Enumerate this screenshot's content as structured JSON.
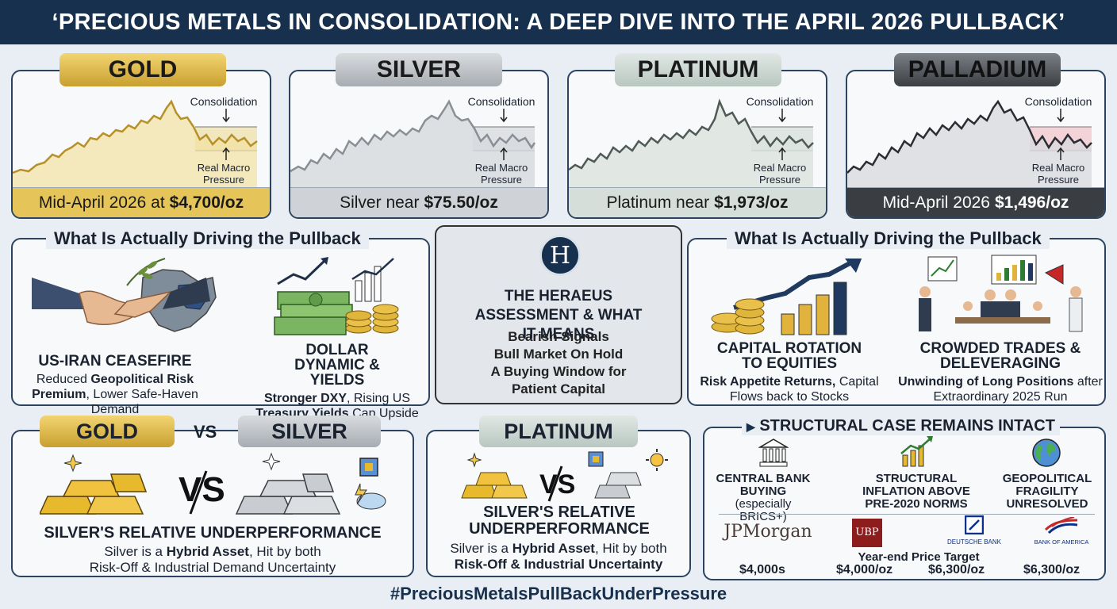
{
  "banner": {
    "title": "‘PRECIOUS METALS IN CONSOLIDATION: A DEEP DIVE INTO THE APRIL 2026 PULLBACK’"
  },
  "metal_cards": [
    {
      "name": "GOLD",
      "consolidation": "Consolidation",
      "pressure": "Real Macro\nPressure",
      "footer_prefix": "Mid-April 2026 at",
      "footer_price": "$4,700/oz",
      "color": "#d9b54a"
    },
    {
      "name": "SILVER",
      "consolidation": "Consolidation",
      "pressure": "Real Macro\nPressure",
      "footer_prefix": "Silver near",
      "footer_price": "$75.50/oz",
      "color": "#b8bcc2"
    },
    {
      "name": "PLATINUM",
      "consolidation": "Consolidation",
      "pressure": "Real Macro\nPressure",
      "footer_prefix": "Platinum near",
      "footer_price": "$1,973/oz",
      "color": "#c9d4cf"
    },
    {
      "name": "PALLADIUM",
      "consolidation": "Consolidation",
      "pressure": "Real Macro\nPressure",
      "footer_prefix": "Mid-April 2026",
      "footer_price": "$1,496/oz",
      "color": "#3b3f44"
    }
  ],
  "drivers_left": {
    "title": "What Is Actually Driving the Pullback",
    "items": [
      {
        "heading": "US-IRAN CEASEFIRE",
        "body_parts": [
          "Reduced ",
          "Geopolitical Risk Premium",
          ", Lower Safe-Haven Demand"
        ]
      },
      {
        "heading": "DOLLAR DYNAMIC & YIELDS",
        "body_parts": [
          "Stronger DXY",
          ", Rising US ",
          "Treasury Yields",
          " Cap Upside"
        ]
      }
    ]
  },
  "assessment": {
    "title": "THE HERAEUS ASSESSMENT & WHAT IT MEANS",
    "lines": [
      "Bearish Signals",
      "Bull Market On Hold",
      "A Buying Window for",
      "Patient Capital"
    ]
  },
  "drivers_right": {
    "title": "What Is Actually Driving the Pullback",
    "items": [
      {
        "heading": "CAPITAL ROTATION TO EQUITIES",
        "body_parts": [
          "Risk Appetite Returns,",
          " Capital Flows back to Stocks"
        ]
      },
      {
        "heading": "CROWDED TRADES & DELEVERAGING",
        "body_parts": [
          "Unwinding of Long Positions",
          " after Extraordinary 2025 Run"
        ]
      }
    ]
  },
  "gold_vs_silver": {
    "tag_left": "GOLD",
    "vs_label": "VS",
    "tag_right": "SILVER",
    "big_vs": "VS",
    "heading": "SILVER'S RELATIVE UNDERPERFORMANCE",
    "body_line1_parts": [
      "Silver is a ",
      "Hybrid Asset",
      ", Hit by both"
    ],
    "body_line2": "Risk-Off & Industrial Demand Uncertainty"
  },
  "platinum_panel": {
    "tag": "PLATINUM",
    "big_vs": "VS",
    "heading": "SILVER'S RELATIVE UNDERPERFORMANCE",
    "body_line1_parts": [
      "Silver is a ",
      "Hybrid Asset",
      ", Hit by both"
    ],
    "body_line2": "Risk-Off & Industrial Uncertainty"
  },
  "structural": {
    "title": "STRUCTURAL CASE REMAINS INTACT",
    "pillars": [
      {
        "heading": "CENTRAL BANK BUYING",
        "sub": "(especially BRICS+)"
      },
      {
        "heading": "STRUCTURAL INFLATION ABOVE PRE-2020 NORMS",
        "sub": ""
      },
      {
        "heading": "GEOPOLITICAL FRAGILITY UNRESOLVED",
        "sub": ""
      }
    ],
    "banks": [
      "JPMorgan",
      "UBP",
      "DEUTSCHE BANK",
      "BANK OF AMERICA"
    ],
    "target_label": "Year-end Price Target",
    "targets": [
      "$4,000s",
      "$4,000/oz",
      "$6,300/oz",
      "$6,300/oz"
    ]
  },
  "hashtag": "#PreciousMetalsPullBackUnderPressure"
}
